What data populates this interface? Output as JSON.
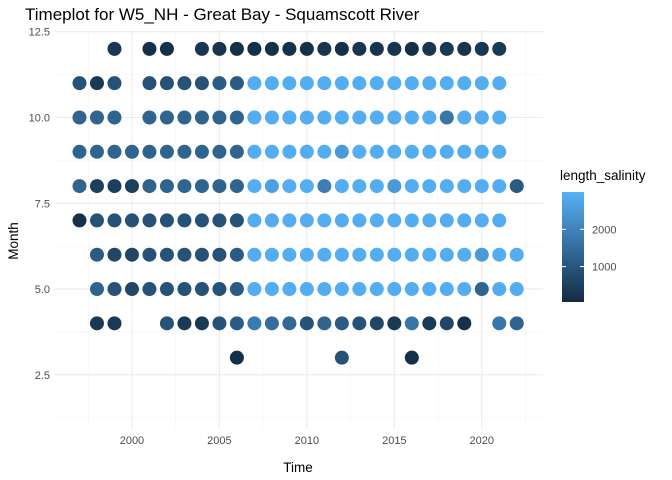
{
  "chart_data": {
    "type": "scatter",
    "title": "Timeplot for W5_NH - Great Bay - Squamscott River",
    "xlabel": "Time",
    "ylabel": "Month",
    "xlim": [
      1995.6,
      2023.5
    ],
    "ylim": [
      0.95,
      12.55
    ],
    "x_ticks": [
      2000,
      2005,
      2010,
      2015,
      2020
    ],
    "x_tick_labels": [
      "2000",
      "2005",
      "2010",
      "2015",
      "2020"
    ],
    "y_ticks": [
      2.5,
      5.0,
      7.5,
      10.0,
      12.5
    ],
    "y_tick_labels": [
      "2.5",
      "5.0",
      "7.5",
      "10.0",
      "12.5"
    ],
    "grid": true,
    "legend": {
      "title": "length_salinity",
      "position": "right",
      "range": [
        50,
        3000
      ],
      "breaks": [
        1000,
        2000
      ],
      "labels": [
        "1000",
        "2000"
      ],
      "low_color": "#132B43",
      "high_color": "#56B1F7"
    },
    "point_color_low": "#132B43",
    "point_color_high": "#56B1F7",
    "years": [
      1997,
      1998,
      1999,
      2000,
      2001,
      2002,
      2003,
      2004,
      2005,
      2006,
      2007,
      2008,
      2009,
      2010,
      2011,
      2012,
      2013,
      2014,
      2015,
      2016,
      2017,
      2018,
      2019,
      2020,
      2021,
      2022
    ],
    "series_by_month": [
      {
        "month": 12,
        "values": {
          "1999": 300,
          "2001": 150,
          "2002": 150,
          "2004": 300,
          "2005": 250,
          "2006": 150,
          "2007": 150,
          "2008": 150,
          "2009": 150,
          "2010": 150,
          "2011": 250,
          "2012": 150,
          "2013": 250,
          "2014": 250,
          "2015": 250,
          "2016": 150,
          "2017": 250,
          "2018": 350,
          "2019": 250,
          "2020": 300,
          "2021": 350
        }
      },
      {
        "month": 11,
        "values": {
          "1997": 900,
          "1998": 350,
          "1999": 900,
          "2001": 900,
          "2002": 900,
          "2003": 900,
          "2004": 900,
          "2005": 1100,
          "2006": 1100,
          "2007": 2900,
          "2008": 2900,
          "2009": 2900,
          "2010": 2900,
          "2011": 2900,
          "2012": 2900,
          "2013": 2900,
          "2014": 2900,
          "2015": 2900,
          "2016": 2900,
          "2017": 2900,
          "2018": 2900,
          "2019": 2900,
          "2020": 2900,
          "2021": 2900
        }
      },
      {
        "month": 10,
        "values": {
          "1997": 1300,
          "1998": 1300,
          "1999": 1300,
          "2001": 1300,
          "2002": 1300,
          "2003": 1300,
          "2004": 1300,
          "2005": 1300,
          "2006": 1300,
          "2007": 2900,
          "2008": 2900,
          "2009": 2900,
          "2010": 2900,
          "2011": 2900,
          "2012": 2900,
          "2013": 2900,
          "2014": 2900,
          "2015": 2900,
          "2016": 2900,
          "2017": 2900,
          "2018": 1700,
          "2019": 2900,
          "2020": 2900,
          "2021": 2900
        }
      },
      {
        "month": 9,
        "values": {
          "1997": 1300,
          "1998": 1300,
          "1999": 1300,
          "2000": 1300,
          "2001": 1300,
          "2002": 1300,
          "2003": 1300,
          "2004": 1300,
          "2005": 1300,
          "2006": 1300,
          "2007": 2900,
          "2008": 2900,
          "2009": 2900,
          "2010": 2900,
          "2011": 2900,
          "2012": 2500,
          "2013": 2900,
          "2014": 2900,
          "2015": 2900,
          "2016": 2900,
          "2017": 2900,
          "2018": 2900,
          "2019": 2900,
          "2020": 2900,
          "2021": 2900
        }
      },
      {
        "month": 8,
        "values": {
          "1997": 1300,
          "1998": 500,
          "1999": 500,
          "2000": 500,
          "2001": 1300,
          "2002": 1300,
          "2003": 1300,
          "2004": 1300,
          "2005": 1300,
          "2006": 1300,
          "2007": 2900,
          "2008": 2600,
          "2009": 2900,
          "2010": 2900,
          "2011": 1900,
          "2012": 2900,
          "2013": 2900,
          "2014": 2900,
          "2015": 2500,
          "2016": 2900,
          "2017": 2900,
          "2018": 2900,
          "2019": 2900,
          "2020": 2900,
          "2021": 2900,
          "2022": 1100
        }
      },
      {
        "month": 7,
        "values": {
          "1997": 150,
          "1998": 900,
          "1999": 900,
          "2000": 900,
          "2001": 900,
          "2002": 900,
          "2003": 900,
          "2004": 900,
          "2005": 900,
          "2006": 900,
          "2007": 2900,
          "2008": 2900,
          "2009": 2900,
          "2010": 2900,
          "2011": 2900,
          "2012": 2900,
          "2013": 2900,
          "2014": 2900,
          "2015": 2900,
          "2016": 2900,
          "2017": 2900,
          "2018": 2900,
          "2019": 2900,
          "2020": 2900,
          "2021": 2900
        }
      },
      {
        "month": 6,
        "values": {
          "1998": 1100,
          "1999": 650,
          "2000": 650,
          "2001": 900,
          "2002": 900,
          "2003": 900,
          "2004": 900,
          "2005": 900,
          "2006": 1100,
          "2007": 2900,
          "2008": 2900,
          "2009": 2900,
          "2010": 2900,
          "2011": 2900,
          "2012": 2900,
          "2013": 2900,
          "2014": 2900,
          "2015": 2900,
          "2016": 2900,
          "2017": 2900,
          "2018": 2900,
          "2019": 2900,
          "2020": 2500,
          "2021": 2900,
          "2022": 2900
        }
      },
      {
        "month": 5,
        "values": {
          "1998": 1300,
          "1999": 900,
          "2000": 650,
          "2001": 900,
          "2002": 900,
          "2003": 900,
          "2004": 900,
          "2005": 900,
          "2006": 1100,
          "2007": 2900,
          "2008": 2900,
          "2009": 2900,
          "2010": 2900,
          "2011": 2900,
          "2012": 2900,
          "2013": 2900,
          "2014": 2900,
          "2015": 2900,
          "2016": 2900,
          "2017": 2900,
          "2018": 2900,
          "2019": 2900,
          "2020": 1300,
          "2021": 2900,
          "2022": 2900
        }
      },
      {
        "month": 4,
        "values": {
          "1998": 350,
          "1999": 350,
          "2002": 900,
          "2003": 350,
          "2004": 350,
          "2005": 900,
          "2006": 1100,
          "2007": 1800,
          "2008": 1500,
          "2009": 1400,
          "2010": 900,
          "2011": 1300,
          "2012": 1100,
          "2013": 900,
          "2014": 650,
          "2015": 350,
          "2016": 1700,
          "2017": 350,
          "2018": 650,
          "2019": 150,
          "2021": 1700,
          "2022": 1300
        }
      },
      {
        "month": 3,
        "values": {
          "2006": 150,
          "2012": 900,
          "2016": 150
        }
      }
    ]
  }
}
